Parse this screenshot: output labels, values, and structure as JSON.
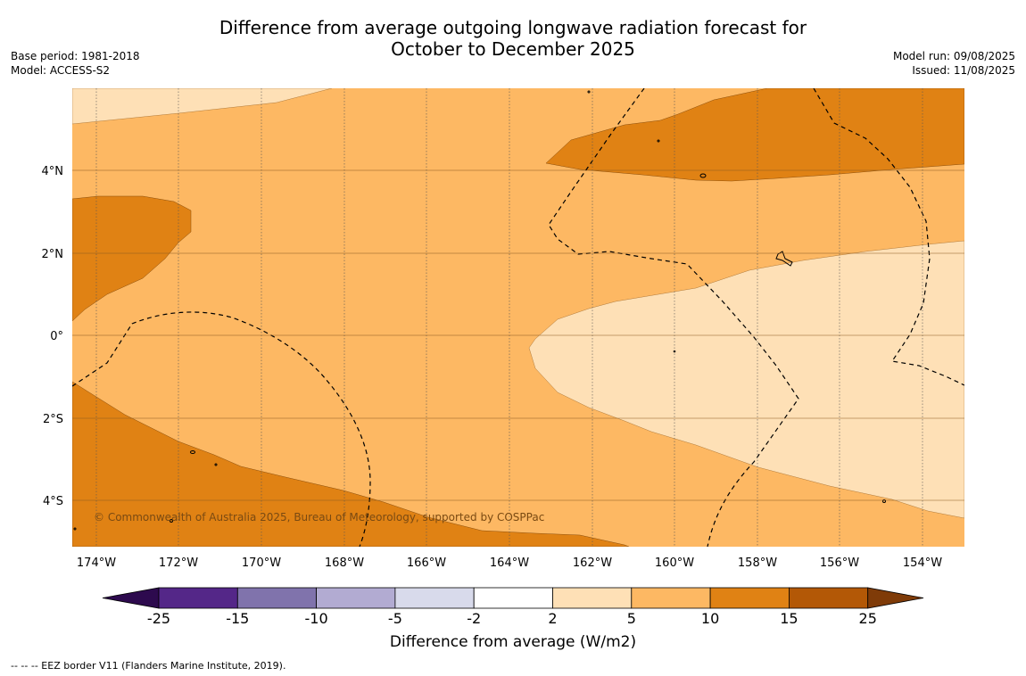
{
  "title_line1": "Difference from average outgoing longwave radiation forecast for",
  "title_line2": "October to December 2025",
  "base_period": "Base period: 1981-2018",
  "model": "Model: ACCESS-S2",
  "model_run": "Model run: 09/08/2025",
  "issued": "Issued: 11/08/2025",
  "copyright": "© Commonwealth of Australia 2025, Bureau of Meteorology, supported by COSPPac",
  "x_ticks": [
    "174°W",
    "172°W",
    "170°W",
    "168°W",
    "166°W",
    "164°W",
    "162°W",
    "160°W",
    "158°W",
    "156°W",
    "154°W"
  ],
  "y_ticks": [
    "4°N",
    "2°N",
    "0°",
    "2°S",
    "4°S"
  ],
  "colorbar": {
    "label": "Difference from average (W/m2)",
    "ticks": [
      "-25",
      "-15",
      "-10",
      "-5",
      "-2",
      "2",
      "5",
      "10",
      "15",
      "25"
    ],
    "colors": {
      "below_min": "#2d0a4e",
      "m25_m15": "#542788",
      "m15_m10": "#8073ac",
      "m10_m5": "#b2abd2",
      "m5_m2": "#d8daeb",
      "m2_2": "#ffffff",
      "p2_5": "#fee0b6",
      "p5_10": "#fdb863",
      "p10_15": "#e08214",
      "p15_25": "#b35806",
      "above_max": "#7f3b08"
    }
  },
  "footnote": "--  --  -- EEZ border V11 (Flanders Marine Institute, 2019)."
}
